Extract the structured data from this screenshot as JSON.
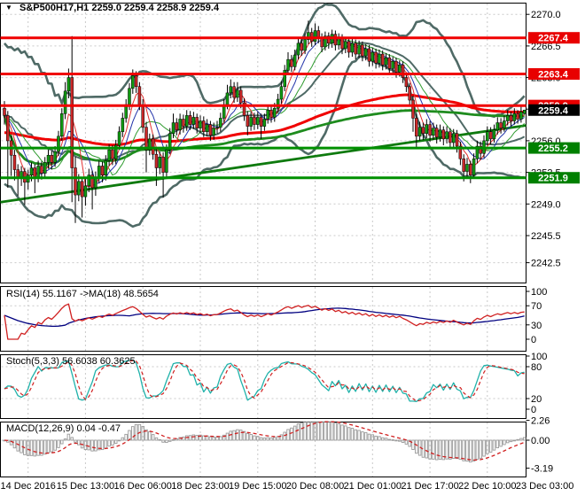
{
  "window": {
    "title_symbol": "S&P500H17,H1",
    "title_ohlc": "2259.0 2259.4 2258.9 2259.4"
  },
  "icons": {
    "symbol_dropdown": "▼"
  },
  "colors": {
    "background": "#ffffff",
    "grid": "#c9c9c9",
    "pane_border": "#000000",
    "candle_up": "#119b11",
    "candle_down": "#cc2929",
    "wick": "#000000",
    "bollinger": "#4f6a66",
    "ma_thin_red": "#e23030",
    "ma_thin_blue": "#2233aa",
    "ma_thin_green": "#2f9b2f",
    "ma_slow_red": "#f00000",
    "ma_slow_green": "#1e8c1e",
    "trendline": "#0e7a0e",
    "level_red": "#f00000",
    "level_green": "#009000",
    "current_price_box": "#000000",
    "rsi_line": "#d02020",
    "rsi_ma": "#000080",
    "stoch_k": "#20b2aa",
    "stoch_d": "#d02020",
    "macd_hist": "#9a9a9a",
    "macd_signal": "#d02020",
    "axis_text": "#000000"
  },
  "chart_data": {
    "type": "candlestick-with-indicators",
    "symbol": "S&P500H17",
    "timeframe": "H1",
    "x_labels": [
      "14 Dec 2016",
      "15 Dec 13:00",
      "16 Dec 06:00",
      "18 Dec 23:00",
      "19 Dec 15:00",
      "20 Dec 08:00",
      "21 Dec 01:00",
      "21 Dec 17:00",
      "22 Dec 10:00",
      "23 Dec 03:00"
    ],
    "x_label_bars": [
      7,
      24,
      41,
      58,
      75,
      92,
      109,
      126,
      143,
      160
    ],
    "price_ticks": [
      2270.0,
      2266.5,
      2263.0,
      2259.5,
      2256.0,
      2252.5,
      2249.0,
      2245.5,
      2242.5
    ],
    "ylim": [
      2240.2,
      2271.0
    ],
    "levels": [
      {
        "price": 2267.4,
        "type": "resistance",
        "line": "#f00000",
        "box": "#e80000"
      },
      {
        "price": 2263.4,
        "type": "resistance",
        "line": "#f00000",
        "box": "#e80000"
      },
      {
        "price": 2259.9,
        "type": "resistance",
        "line": "#f00000",
        "box": "#e80000"
      },
      {
        "price": 2255.2,
        "type": "support",
        "line": "#009000",
        "box": "#008000"
      },
      {
        "price": 2251.9,
        "type": "support",
        "line": "#009000",
        "box": "#008000"
      }
    ],
    "current_price": {
      "value": 2259.4,
      "box": "#000000"
    },
    "trendline": {
      "price_at_left": 2249.2,
      "price_at_right": 2257.7
    },
    "overlays": {
      "bollinger_period": 20,
      "bollinger_dev": 2,
      "ma_fast_periods": [
        5,
        8,
        13
      ],
      "ma_slow_red_len": 60,
      "ma_slow_red_seed": 2253.5
    },
    "panes": {
      "rsi": {
        "label": "RSI(14) 55.1167 ->MA(18) 48.5654",
        "period": 14,
        "ma_period": 18,
        "ticks": [
          100,
          70,
          30,
          0
        ],
        "gridlines": [
          70,
          30
        ]
      },
      "stoch": {
        "label": "Stoch(5,3,3) 56.6038 60.3625",
        "k": 5,
        "d": 3,
        "slowing": 3,
        "ticks": [
          100,
          80,
          20,
          0
        ],
        "gridlines": [
          80,
          20
        ]
      },
      "macd": {
        "label": "MACD(12,26,9) 0.04 -0.47",
        "fast": 12,
        "slow": 26,
        "signal": 9,
        "ticks": [
          2.26,
          0.0,
          -3.19
        ],
        "gridlines": [
          0
        ]
      }
    },
    "candles": [
      [
        2259.6,
        2260.4,
        2257.8,
        2258.8
      ],
      [
        2258.8,
        2259.3,
        2250.8,
        2256.0
      ],
      [
        2256.0,
        2256.6,
        2252.1,
        2254.4
      ],
      [
        2254.4,
        2255.0,
        2251.6,
        2252.8
      ],
      [
        2252.8,
        2253.4,
        2249.9,
        2251.8
      ],
      [
        2251.8,
        2253.2,
        2251.0,
        2252.6
      ],
      [
        2252.6,
        2253.0,
        2248.9,
        2251.4
      ],
      [
        2251.4,
        2252.8,
        2250.6,
        2252.2
      ],
      [
        2252.2,
        2253.6,
        2251.5,
        2253.0
      ],
      [
        2253.0,
        2253.4,
        2250.2,
        2252.0
      ],
      [
        2252.0,
        2253.8,
        2251.4,
        2253.2
      ],
      [
        2253.2,
        2253.7,
        2251.7,
        2252.4
      ],
      [
        2252.4,
        2254.2,
        2251.9,
        2253.6
      ],
      [
        2253.6,
        2255.0,
        2252.9,
        2254.4
      ],
      [
        2254.4,
        2254.9,
        2252.8,
        2253.6
      ],
      [
        2253.6,
        2255.4,
        2253.1,
        2254.8
      ],
      [
        2254.8,
        2257.1,
        2254.3,
        2256.5
      ],
      [
        2256.5,
        2259.6,
        2256.0,
        2259.0
      ],
      [
        2259.0,
        2262.5,
        2258.4,
        2261.5
      ],
      [
        2261.5,
        2264.0,
        2260.7,
        2263.0
      ],
      [
        2263.0,
        2267.6,
        2249.2,
        2253.0
      ],
      [
        2253.0,
        2254.2,
        2246.9,
        2250.0
      ],
      [
        2250.0,
        2252.3,
        2249.3,
        2251.5
      ],
      [
        2251.5,
        2252.0,
        2247.5,
        2249.8
      ],
      [
        2249.8,
        2251.8,
        2248.8,
        2251.0
      ],
      [
        2251.0,
        2252.9,
        2250.3,
        2252.2
      ],
      [
        2252.2,
        2252.7,
        2248.4,
        2250.8
      ],
      [
        2250.8,
        2252.6,
        2249.9,
        2252.0
      ],
      [
        2252.0,
        2253.8,
        2251.3,
        2253.2
      ],
      [
        2253.2,
        2253.7,
        2251.4,
        2252.2
      ],
      [
        2252.2,
        2254.4,
        2251.6,
        2253.8
      ],
      [
        2253.8,
        2255.6,
        2253.2,
        2255.0
      ],
      [
        2255.0,
        2255.5,
        2253.3,
        2254.0
      ],
      [
        2254.0,
        2256.1,
        2253.4,
        2255.5
      ],
      [
        2255.5,
        2257.6,
        2255.0,
        2257.0
      ],
      [
        2257.0,
        2259.1,
        2256.4,
        2258.5
      ],
      [
        2258.5,
        2260.6,
        2258.0,
        2260.0
      ],
      [
        2260.0,
        2262.4,
        2259.4,
        2261.8
      ],
      [
        2261.8,
        2263.9,
        2261.2,
        2263.2
      ],
      [
        2263.2,
        2263.7,
        2261.3,
        2262.0
      ],
      [
        2262.0,
        2262.5,
        2259.4,
        2260.0
      ],
      [
        2260.0,
        2260.6,
        2256.9,
        2257.5
      ],
      [
        2257.5,
        2258.1,
        2252.5,
        2255.0
      ],
      [
        2255.0,
        2256.8,
        2254.4,
        2256.2
      ],
      [
        2256.2,
        2256.7,
        2253.9,
        2254.5
      ],
      [
        2254.5,
        2255.1,
        2251.0,
        2253.0
      ],
      [
        2253.0,
        2254.8,
        2252.3,
        2254.2
      ],
      [
        2254.2,
        2254.7,
        2249.7,
        2252.5
      ],
      [
        2252.5,
        2255.6,
        2252.0,
        2255.0
      ],
      [
        2255.0,
        2257.4,
        2254.5,
        2256.8
      ],
      [
        2256.8,
        2259.0,
        2256.3,
        2258.0
      ],
      [
        2258.0,
        2258.5,
        2256.6,
        2257.2
      ],
      [
        2257.2,
        2259.0,
        2256.7,
        2258.4
      ],
      [
        2258.4,
        2258.9,
        2256.9,
        2257.6
      ],
      [
        2257.6,
        2259.4,
        2257.1,
        2258.8
      ],
      [
        2258.8,
        2259.3,
        2257.2,
        2257.8
      ],
      [
        2257.8,
        2259.2,
        2257.3,
        2258.6
      ],
      [
        2258.6,
        2259.0,
        2256.8,
        2257.4
      ],
      [
        2257.4,
        2258.8,
        2256.9,
        2258.2
      ],
      [
        2258.2,
        2258.7,
        2256.4,
        2257.0
      ],
      [
        2257.0,
        2258.4,
        2256.5,
        2257.8
      ],
      [
        2257.8,
        2258.2,
        2256.0,
        2256.6
      ],
      [
        2256.6,
        2258.0,
        2256.1,
        2257.4
      ],
      [
        2257.4,
        2258.2,
        2256.8,
        2257.5
      ],
      [
        2257.5,
        2259.1,
        2257.0,
        2258.5
      ],
      [
        2258.5,
        2260.6,
        2258.0,
        2260.0
      ],
      [
        2260.0,
        2262.2,
        2259.5,
        2261.3
      ],
      [
        2261.3,
        2262.8,
        2260.7,
        2262.0
      ],
      [
        2262.0,
        2262.5,
        2260.2,
        2260.8
      ],
      [
        2260.8,
        2262.5,
        2260.3,
        2261.6
      ],
      [
        2261.6,
        2262.0,
        2259.6,
        2260.2
      ],
      [
        2260.2,
        2260.7,
        2258.2,
        2258.8
      ],
      [
        2258.8,
        2259.3,
        2256.6,
        2257.6
      ],
      [
        2257.6,
        2259.2,
        2257.1,
        2258.6
      ],
      [
        2258.6,
        2259.1,
        2257.2,
        2257.8
      ],
      [
        2257.8,
        2259.2,
        2257.3,
        2258.6
      ],
      [
        2258.6,
        2259.0,
        2256.2,
        2257.6
      ],
      [
        2257.6,
        2259.0,
        2257.1,
        2258.4
      ],
      [
        2258.4,
        2260.0,
        2257.9,
        2259.4
      ],
      [
        2259.4,
        2259.9,
        2258.0,
        2258.6
      ],
      [
        2258.6,
        2260.2,
        2258.1,
        2259.6
      ],
      [
        2259.6,
        2261.2,
        2259.1,
        2260.6
      ],
      [
        2260.6,
        2262.6,
        2260.1,
        2262.0
      ],
      [
        2262.0,
        2264.4,
        2261.5,
        2263.8
      ],
      [
        2263.8,
        2265.8,
        2263.3,
        2265.0
      ],
      [
        2265.0,
        2265.5,
        2263.6,
        2264.2
      ],
      [
        2264.2,
        2266.1,
        2263.8,
        2265.5
      ],
      [
        2265.5,
        2267.5,
        2265.0,
        2266.8
      ],
      [
        2266.8,
        2267.3,
        2265.4,
        2266.0
      ],
      [
        2266.0,
        2267.9,
        2265.6,
        2267.2
      ],
      [
        2267.2,
        2269.3,
        2266.7,
        2268.0
      ],
      [
        2268.0,
        2268.5,
        2266.4,
        2267.0
      ],
      [
        2267.0,
        2269.0,
        2266.6,
        2268.2
      ],
      [
        2268.2,
        2268.7,
        2266.8,
        2267.4
      ],
      [
        2267.4,
        2267.9,
        2265.8,
        2266.4
      ],
      [
        2266.4,
        2268.1,
        2266.0,
        2267.6
      ],
      [
        2267.6,
        2268.0,
        2266.2,
        2266.8
      ],
      [
        2266.8,
        2268.3,
        2266.3,
        2267.8
      ],
      [
        2267.8,
        2268.2,
        2266.0,
        2266.6
      ],
      [
        2266.6,
        2267.9,
        2266.1,
        2267.4
      ],
      [
        2267.4,
        2267.8,
        2265.6,
        2266.2
      ],
      [
        2266.2,
        2267.5,
        2265.7,
        2267.0
      ],
      [
        2267.0,
        2267.4,
        2265.2,
        2265.8
      ],
      [
        2265.8,
        2267.3,
        2265.3,
        2266.8
      ],
      [
        2266.8,
        2267.2,
        2265.0,
        2265.6
      ],
      [
        2265.6,
        2267.1,
        2265.1,
        2266.6
      ],
      [
        2266.6,
        2267.0,
        2264.8,
        2265.4
      ],
      [
        2265.4,
        2266.7,
        2264.9,
        2266.2
      ],
      [
        2266.2,
        2266.6,
        2264.2,
        2264.8
      ],
      [
        2264.8,
        2266.3,
        2264.3,
        2265.8
      ],
      [
        2265.8,
        2266.2,
        2264.0,
        2264.6
      ],
      [
        2264.6,
        2266.1,
        2264.1,
        2265.6
      ],
      [
        2265.6,
        2266.0,
        2263.8,
        2264.4
      ],
      [
        2264.4,
        2265.7,
        2263.9,
        2265.2
      ],
      [
        2265.2,
        2265.6,
        2263.4,
        2264.0
      ],
      [
        2264.0,
        2265.3,
        2263.5,
        2264.8
      ],
      [
        2264.8,
        2265.2,
        2263.0,
        2263.6
      ],
      [
        2263.6,
        2264.9,
        2263.1,
        2264.4
      ],
      [
        2264.4,
        2264.8,
        2262.4,
        2263.0
      ],
      [
        2263.0,
        2263.5,
        2261.4,
        2262.0
      ],
      [
        2262.0,
        2262.4,
        2259.9,
        2260.5
      ],
      [
        2260.5,
        2261.0,
        2257.0,
        2258.5
      ],
      [
        2258.5,
        2259.0,
        2255.3,
        2256.5
      ],
      [
        2256.5,
        2258.1,
        2256.0,
        2257.5
      ],
      [
        2257.5,
        2258.0,
        2256.1,
        2256.8
      ],
      [
        2256.8,
        2258.4,
        2256.3,
        2257.8
      ],
      [
        2257.8,
        2258.2,
        2255.9,
        2256.6
      ],
      [
        2256.6,
        2258.0,
        2256.1,
        2257.4
      ],
      [
        2257.4,
        2257.8,
        2255.7,
        2256.4
      ],
      [
        2256.4,
        2257.8,
        2255.9,
        2257.2
      ],
      [
        2257.2,
        2257.6,
        2255.5,
        2256.2
      ],
      [
        2256.2,
        2257.6,
        2255.7,
        2257.0
      ],
      [
        2257.0,
        2257.4,
        2255.1,
        2255.8
      ],
      [
        2255.8,
        2257.3,
        2255.3,
        2256.8
      ],
      [
        2256.8,
        2257.2,
        2254.7,
        2255.4
      ],
      [
        2255.4,
        2255.9,
        2253.3,
        2254.0
      ],
      [
        2254.0,
        2254.5,
        2251.5,
        2252.6
      ],
      [
        2252.6,
        2254.1,
        2252.0,
        2253.4
      ],
      [
        2253.4,
        2253.8,
        2251.3,
        2252.2
      ],
      [
        2252.2,
        2254.6,
        2251.8,
        2254.0
      ],
      [
        2254.0,
        2256.0,
        2253.5,
        2255.4
      ],
      [
        2255.4,
        2255.9,
        2253.9,
        2254.6
      ],
      [
        2254.6,
        2256.6,
        2254.1,
        2256.0
      ],
      [
        2256.0,
        2257.6,
        2255.5,
        2257.0
      ],
      [
        2257.0,
        2257.5,
        2255.6,
        2256.2
      ],
      [
        2256.2,
        2257.8,
        2255.8,
        2257.2
      ],
      [
        2257.2,
        2258.6,
        2256.7,
        2258.0
      ],
      [
        2258.0,
        2258.5,
        2256.8,
        2257.4
      ],
      [
        2257.4,
        2258.8,
        2257.0,
        2258.2
      ],
      [
        2258.2,
        2259.4,
        2257.7,
        2258.8
      ],
      [
        2258.8,
        2259.2,
        2257.6,
        2258.2
      ],
      [
        2258.2,
        2259.6,
        2257.8,
        2259.0
      ],
      [
        2259.0,
        2259.4,
        2257.9,
        2258.4
      ],
      [
        2258.4,
        2259.8,
        2258.0,
        2259.2
      ],
      [
        2259.0,
        2259.4,
        2258.9,
        2259.4
      ]
    ]
  }
}
